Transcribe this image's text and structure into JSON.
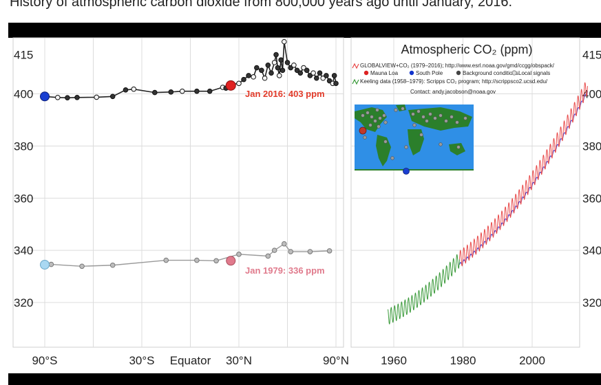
{
  "caption": "History of atmospheric carbon dioxide from 800,000 years ago until January, 2016.",
  "chart_data": [
    {
      "type": "scatter",
      "xlabel": "",
      "ylabel": "",
      "x_ticks": [
        "90°S",
        "30°S",
        "Equator",
        "30°N",
        "90°N"
      ],
      "x_tick_values": [
        -90,
        -30,
        0,
        30,
        90
      ],
      "y_ticks": [
        320,
        340,
        360,
        380,
        400,
        415
      ],
      "ylim": [
        305,
        418
      ],
      "grid": true,
      "series": [
        {
          "name": "Jan 2016",
          "color": "#222222",
          "x": [
            -90,
            -82,
            -76,
            -70,
            -58,
            -48,
            -40,
            -35,
            -22,
            -12,
            -5,
            4,
            12,
            20,
            22,
            25,
            30,
            33,
            36,
            39,
            41,
            44,
            46,
            48,
            50,
            52,
            53,
            54,
            55,
            56,
            57,
            58,
            60,
            62,
            64,
            66,
            68,
            70,
            72,
            74,
            76,
            78,
            80,
            82,
            84,
            86,
            88,
            89,
            90
          ],
          "y": [
            399,
            398.6,
            398.5,
            398.6,
            398.7,
            399,
            401.5,
            401.8,
            400.5,
            400.7,
            401,
            401,
            401,
            402.5,
            402.2,
            403.6,
            404,
            405.5,
            407,
            406.5,
            410,
            409,
            406,
            411,
            408,
            412,
            415,
            410,
            407,
            413,
            409,
            420,
            412,
            410,
            411,
            409,
            408,
            410,
            409,
            407,
            408,
            406,
            408,
            406,
            407,
            405,
            404,
            407,
            404
          ]
        },
        {
          "name": "Jan 1979",
          "color": "#999999",
          "x": [
            -90,
            -86,
            -67,
            -48,
            -15,
            4,
            16,
            30,
            48,
            52,
            58,
            62,
            74,
            86
          ],
          "y": [
            334.5,
            334.6,
            333.9,
            334.3,
            336.2,
            336.2,
            336,
            338.5,
            337.8,
            340,
            342.5,
            339.5,
            339.5,
            339.8
          ]
        }
      ],
      "annotations": [
        "Jan 2016: 403 ppm",
        "Jan 1979: 336 ppm"
      ],
      "right_axis_labels": [
        "415",
        "400",
        "380",
        "360",
        "340",
        "320"
      ]
    },
    {
      "type": "line",
      "title": "Atmospheric CO₂ (ppm)",
      "x_ticks": [
        1960,
        1980,
        2000
      ],
      "xlim": [
        1958,
        2016.5
      ],
      "ylim": [
        305,
        418
      ],
      "series": [
        {
          "name": "Keeling data (1958–1979): Scripps CO₂ program; http://scrippsco2.ucsd.edu/",
          "color": "#3a9a3a",
          "x_start": 1958.3,
          "x_end": 1979.0,
          "y_start": 314.5,
          "y_end": 336.5,
          "seasonal_amplitude": 3.0
        },
        {
          "name": "GLOBALVIEW+CO₂ (1979–2016); http://www.esrl.noaa.gov/gmd/ccgg/obspack/",
          "color": "#e84a4a",
          "x_start": 1979.0,
          "x_end": 2016.0,
          "y_start": 336.5,
          "y_end": 403.0,
          "seasonal_amplitude": 3.2
        },
        {
          "name": "South Pole",
          "color": "#3a3ad8",
          "x_start": 1979.0,
          "x_end": 2016.0,
          "y_start": 334.5,
          "y_end": 401.0,
          "seasonal_amplitude": 0.6
        }
      ],
      "legend": {
        "line1": "GLOBALVIEW+CO₂ (1979–2016); http://www.esrl.noaa.gov/gmd/ccgg/obspack/",
        "markers": [
          "Mauna Loa",
          "South Pole",
          "Background conditions",
          "Local signals"
        ],
        "marker_colors": [
          "#dd2222",
          "#1133cc",
          "#444444",
          "#dddddd"
        ],
        "line2": "Keeling data (1958–1979): Scripps CO₂ program; http://scrippsco2.ucsd.edu/",
        "contact": "Contact: andy.jacobson@noaa.gov"
      },
      "map": {
        "ocean": "#2f8fe6",
        "land": "#2b7f2b",
        "ice": "#ffffff"
      }
    }
  ]
}
